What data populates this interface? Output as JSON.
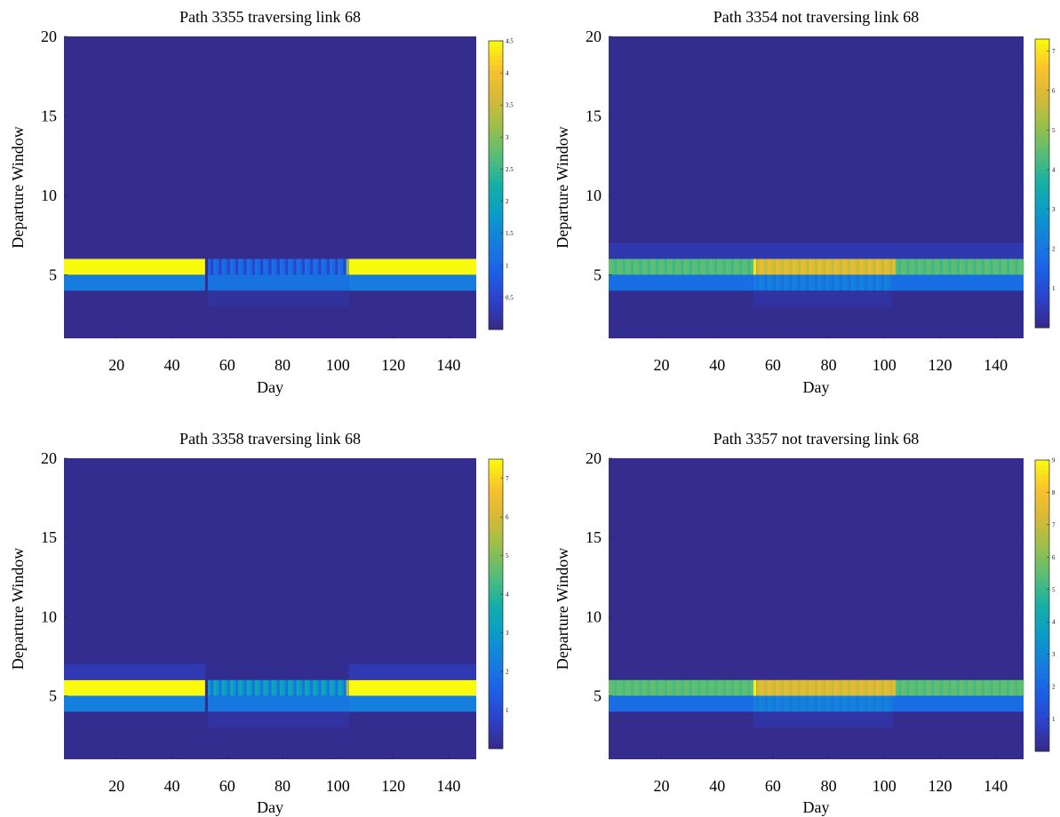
{
  "colormap": "parula",
  "chart_data": [
    {
      "type": "heatmap",
      "title": "Path 3355 traversing  link 68",
      "xlabel": "Day",
      "ylabel": "Departure Window",
      "xlim": [
        1,
        150
      ],
      "ylim": [
        1,
        20
      ],
      "xticks": [
        20,
        40,
        60,
        80,
        100,
        120,
        140
      ],
      "yticks": [
        5,
        10,
        15,
        20
      ],
      "colorbar": {
        "range": [
          0,
          4.5
        ],
        "ticks": [
          "0.5",
          "1",
          "1.5",
          "2",
          "2.5",
          "3",
          "3.5",
          "4",
          "4.5"
        ]
      },
      "background_value": 0.05,
      "segments": [
        {
          "window": 5,
          "day_from": 1,
          "day_to": 52,
          "value": 4.5
        },
        {
          "window": 5,
          "day_from": 53,
          "day_to": 103,
          "value": 1.0,
          "fluctuation": 0.5
        },
        {
          "window": 5,
          "day_from": 103,
          "day_to": 104,
          "value": 3.0
        },
        {
          "window": 5,
          "day_from": 104,
          "day_to": 150,
          "value": 4.5
        },
        {
          "window": 4,
          "day_from": 1,
          "day_to": 52,
          "value": 1.35
        },
        {
          "window": 4,
          "day_from": 53,
          "day_to": 104,
          "value": 1.2
        },
        {
          "window": 4,
          "day_from": 104,
          "day_to": 150,
          "value": 1.35
        },
        {
          "window": 3,
          "day_from": 53,
          "day_to": 104,
          "value": 0.15
        }
      ]
    },
    {
      "type": "heatmap",
      "title": "Path 3354 not traversing  link 68",
      "xlabel": "Day",
      "ylabel": "Departure Window",
      "xlim": [
        1,
        150
      ],
      "ylim": [
        1,
        20
      ],
      "xticks": [
        20,
        40,
        60,
        80,
        100,
        120,
        140
      ],
      "yticks": [
        5,
        10,
        15,
        20
      ],
      "colorbar": {
        "range": [
          0,
          7.3
        ],
        "ticks": [
          "1",
          "2",
          "3",
          "4",
          "5",
          "6",
          "7"
        ]
      },
      "background_value": 0.1,
      "segments": [
        {
          "window": 5,
          "day_from": 1,
          "day_to": 53,
          "value": 4.4,
          "fluctuation": 0.3
        },
        {
          "window": 5,
          "day_from": 53,
          "day_to": 54,
          "value": 7.0
        },
        {
          "window": 5,
          "day_from": 54,
          "day_to": 104,
          "value": 6.0,
          "fluctuation": 0.4
        },
        {
          "window": 5,
          "day_from": 104,
          "day_to": 150,
          "value": 4.4,
          "fluctuation": 0.3
        },
        {
          "window": 4,
          "day_from": 1,
          "day_to": 53,
          "value": 1.8
        },
        {
          "window": 4,
          "day_from": 53,
          "day_to": 103,
          "value": 2.2,
          "fluctuation": 0.3
        },
        {
          "window": 4,
          "day_from": 103,
          "day_to": 150,
          "value": 1.8
        },
        {
          "window": 6,
          "day_from": 1,
          "day_to": 150,
          "value": 0.45
        },
        {
          "window": 3,
          "day_from": 53,
          "day_to": 103,
          "value": 0.3
        }
      ]
    },
    {
      "type": "heatmap",
      "title": "Path 3358 traversing  link 68",
      "xlabel": "Day",
      "ylabel": "Departure Window",
      "xlim": [
        1,
        150
      ],
      "ylim": [
        1,
        20
      ],
      "xticks": [
        20,
        40,
        60,
        80,
        100,
        120,
        140
      ],
      "yticks": [
        5,
        10,
        15,
        20
      ],
      "colorbar": {
        "range": [
          0,
          7.5
        ],
        "ticks": [
          "1",
          "2",
          "3",
          "4",
          "5",
          "6",
          "7"
        ]
      },
      "background_value": 0.1,
      "segments": [
        {
          "window": 5,
          "day_from": 1,
          "day_to": 52,
          "value": 7.5
        },
        {
          "window": 5,
          "day_from": 53,
          "day_to": 103,
          "value": 3.0,
          "fluctuation": 1.0
        },
        {
          "window": 5,
          "day_from": 103,
          "day_to": 104,
          "value": 5.5
        },
        {
          "window": 5,
          "day_from": 104,
          "day_to": 150,
          "value": 7.5
        },
        {
          "window": 4,
          "day_from": 1,
          "day_to": 52,
          "value": 2.3
        },
        {
          "window": 4,
          "day_from": 53,
          "day_to": 104,
          "value": 2.1
        },
        {
          "window": 4,
          "day_from": 104,
          "day_to": 150,
          "value": 2.3
        },
        {
          "window": 6,
          "day_from": 1,
          "day_to": 52,
          "value": 0.5
        },
        {
          "window": 6,
          "day_from": 104,
          "day_to": 150,
          "value": 0.5
        },
        {
          "window": 3,
          "day_from": 53,
          "day_to": 104,
          "value": 0.3
        }
      ]
    },
    {
      "type": "heatmap",
      "title": "Path 3357 not traversing  link 68",
      "xlabel": "Day",
      "ylabel": "Departure Window",
      "xlim": [
        1,
        150
      ],
      "ylim": [
        1,
        20
      ],
      "xticks": [
        20,
        40,
        60,
        80,
        100,
        120,
        140
      ],
      "yticks": [
        5,
        10,
        15,
        20
      ],
      "colorbar": {
        "range": [
          0,
          9
        ],
        "ticks": [
          "1",
          "2",
          "3",
          "4",
          "5",
          "6",
          "7",
          "8",
          "9"
        ]
      },
      "background_value": 0.1,
      "segments": [
        {
          "window": 5,
          "day_from": 1,
          "day_to": 53,
          "value": 5.5,
          "fluctuation": 0.3
        },
        {
          "window": 5,
          "day_from": 53,
          "day_to": 54,
          "value": 8.8
        },
        {
          "window": 5,
          "day_from": 54,
          "day_to": 104,
          "value": 7.4,
          "fluctuation": 0.4
        },
        {
          "window": 5,
          "day_from": 104,
          "day_to": 150,
          "value": 5.5,
          "fluctuation": 0.3
        },
        {
          "window": 4,
          "day_from": 1,
          "day_to": 53,
          "value": 2.2
        },
        {
          "window": 4,
          "day_from": 53,
          "day_to": 103,
          "value": 2.8,
          "fluctuation": 0.3
        },
        {
          "window": 4,
          "day_from": 103,
          "day_to": 150,
          "value": 2.2
        },
        {
          "window": 3,
          "day_from": 53,
          "day_to": 103,
          "value": 0.4
        }
      ]
    }
  ]
}
